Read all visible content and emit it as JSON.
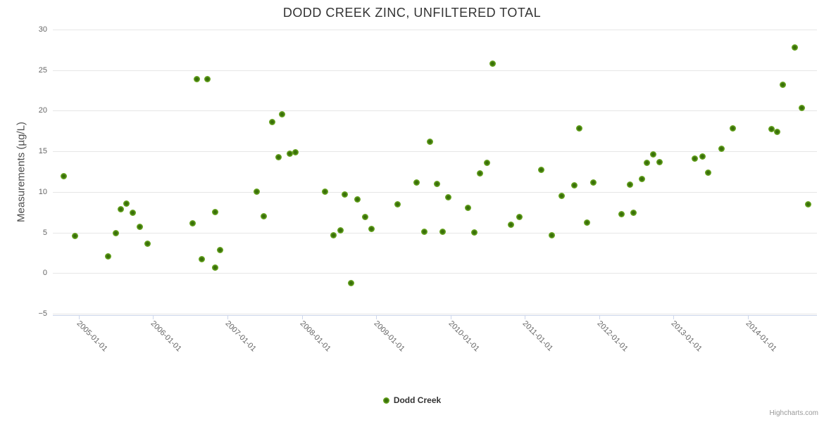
{
  "credits": "Highcharts.com",
  "chart_data": {
    "type": "scatter",
    "title": "DODD CREEK ZINC, UNFILTERED TOTAL",
    "xlabel": "",
    "ylabel": "Measurements (µg/L)",
    "ylim": [
      -5,
      30
    ],
    "yticks": [
      30,
      25,
      20,
      15,
      10,
      5,
      0,
      -5
    ],
    "xlim": [
      2004.65,
      2014.93
    ],
    "xticks": [
      {
        "value": 2005,
        "label": "2005-01-01"
      },
      {
        "value": 2006,
        "label": "2006-01-01"
      },
      {
        "value": 2007,
        "label": "2007-01-01"
      },
      {
        "value": 2008,
        "label": "2008-01-01"
      },
      {
        "value": 2009,
        "label": "2009-01-01"
      },
      {
        "value": 2010,
        "label": "2010-01-01"
      },
      {
        "value": 2011,
        "label": "2011-01-01"
      },
      {
        "value": 2012,
        "label": "2012-01-01"
      },
      {
        "value": 2013,
        "label": "2013-01-01"
      },
      {
        "value": 2014,
        "label": "2014-01-01"
      }
    ],
    "grid": "horizontal-only",
    "legend_position": "bottom-center",
    "series": [
      {
        "name": "Dodd Creek",
        "color": "#69a818",
        "points": [
          [
            2004.8,
            11.9
          ],
          [
            2004.95,
            4.6
          ],
          [
            2005.39,
            2.1
          ],
          [
            2005.5,
            4.9
          ],
          [
            2005.56,
            7.9
          ],
          [
            2005.64,
            8.6
          ],
          [
            2005.73,
            7.4
          ],
          [
            2005.82,
            5.7
          ],
          [
            2005.92,
            3.6
          ],
          [
            2006.53,
            6.1
          ],
          [
            2006.59,
            23.9
          ],
          [
            2006.65,
            1.7
          ],
          [
            2006.73,
            23.9
          ],
          [
            2006.83,
            7.5
          ],
          [
            2006.83,
            0.7
          ],
          [
            2006.9,
            2.8
          ],
          [
            2007.39,
            10.0
          ],
          [
            2007.49,
            7.0
          ],
          [
            2007.6,
            18.6
          ],
          [
            2007.69,
            14.3
          ],
          [
            2007.73,
            19.6
          ],
          [
            2007.84,
            14.7
          ],
          [
            2007.91,
            14.9
          ],
          [
            2008.31,
            10.0
          ],
          [
            2008.43,
            4.7
          ],
          [
            2008.52,
            5.3
          ],
          [
            2008.58,
            9.7
          ],
          [
            2008.66,
            -1.2
          ],
          [
            2008.75,
            9.1
          ],
          [
            2008.85,
            6.9
          ],
          [
            2008.94,
            5.4
          ],
          [
            2009.29,
            8.5
          ],
          [
            2009.54,
            11.2
          ],
          [
            2009.65,
            5.1
          ],
          [
            2009.72,
            16.2
          ],
          [
            2009.82,
            11.0
          ],
          [
            2009.89,
            5.1
          ],
          [
            2009.97,
            9.3
          ],
          [
            2010.24,
            8.0
          ],
          [
            2010.32,
            5.0
          ],
          [
            2010.4,
            12.3
          ],
          [
            2010.49,
            13.6
          ],
          [
            2010.57,
            25.8
          ],
          [
            2010.81,
            6.0
          ],
          [
            2010.93,
            6.9
          ],
          [
            2011.22,
            12.7
          ],
          [
            2011.36,
            4.7
          ],
          [
            2011.5,
            9.5
          ],
          [
            2011.67,
            10.8
          ],
          [
            2011.73,
            17.8
          ],
          [
            2011.84,
            6.2
          ],
          [
            2011.92,
            11.2
          ],
          [
            2012.3,
            7.3
          ],
          [
            2012.41,
            10.9
          ],
          [
            2012.46,
            7.4
          ],
          [
            2012.58,
            11.6
          ],
          [
            2012.64,
            13.6
          ],
          [
            2012.73,
            14.6
          ],
          [
            2012.81,
            13.7
          ],
          [
            2013.29,
            14.1
          ],
          [
            2013.39,
            14.4
          ],
          [
            2013.47,
            12.4
          ],
          [
            2013.65,
            15.3
          ],
          [
            2013.8,
            17.8
          ],
          [
            2014.32,
            17.7
          ],
          [
            2014.39,
            17.4
          ],
          [
            2014.47,
            23.2
          ],
          [
            2014.63,
            27.8
          ],
          [
            2014.73,
            20.3
          ],
          [
            2014.81,
            8.5
          ]
        ]
      }
    ]
  }
}
